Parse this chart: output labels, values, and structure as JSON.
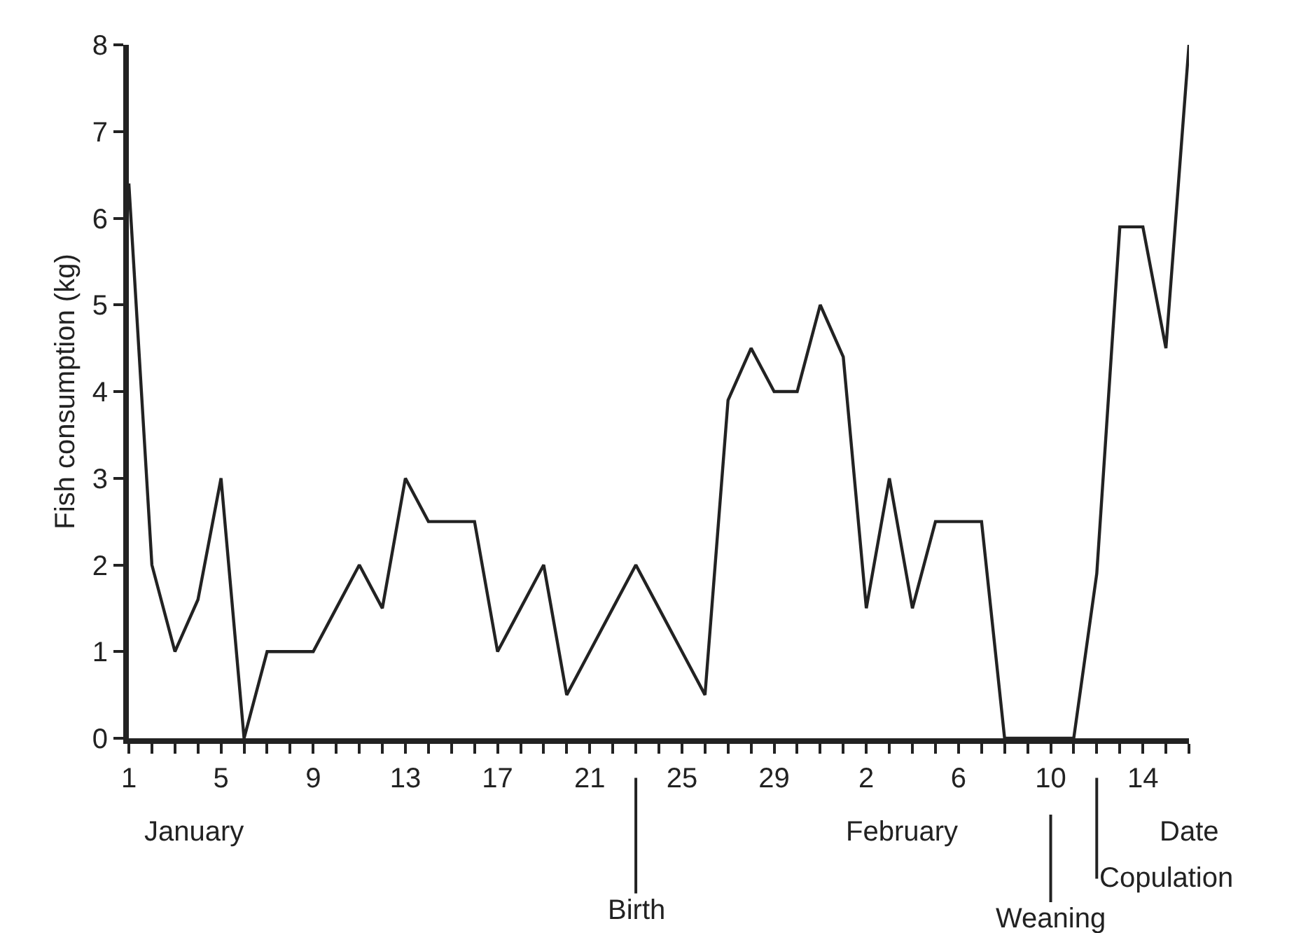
{
  "chart_data": {
    "type": "line",
    "xlabel": "Date",
    "ylabel": "Fish consumption (kg)",
    "x": [
      "--01-01",
      "--01-02",
      "--01-03",
      "--01-04",
      "--01-05",
      "--01-06",
      "--01-07",
      "--01-08",
      "--01-09",
      "--01-10",
      "--01-11",
      "--01-12",
      "--01-13",
      "--01-14",
      "--01-15",
      "--01-16",
      "--01-17",
      "--01-18",
      "--01-19",
      "--01-20",
      "--01-21",
      "--01-22",
      "--01-23",
      "--01-24",
      "--01-25",
      "--01-26",
      "--01-27",
      "--01-28",
      "--01-29",
      "--01-30",
      "--01-31",
      "--02-01",
      "--02-02",
      "--02-03",
      "--02-04",
      "--02-05",
      "--02-06",
      "--02-07",
      "--02-08",
      "--02-09",
      "--02-10",
      "--02-11",
      "--02-12",
      "--02-13",
      "--02-14",
      "--02-15",
      "--02-16"
    ],
    "series": [
      {
        "color": "#222222",
        "values": [
          6.4,
          2,
          1,
          1.6,
          3,
          0,
          1,
          1,
          1,
          1.5,
          2,
          1.5,
          3,
          2.5,
          2.5,
          2.5,
          1,
          1.5,
          2,
          0.5,
          1,
          1.5,
          2,
          1.5,
          1,
          0.5,
          3.9,
          4.5,
          4,
          4,
          5,
          4.4,
          1.5,
          3,
          1.5,
          2.5,
          2.5,
          2.5,
          0,
          0,
          0,
          0,
          1.9,
          5.9,
          5.9,
          4.5,
          8
        ]
      }
    ],
    "xlim": [
      "--01-01",
      "--02-16"
    ],
    "xticks": [
      {
        "value": "--01-01",
        "label": "1"
      },
      {
        "value": "--01-02",
        "label": null
      },
      {
        "value": "--01-03",
        "label": null
      },
      {
        "value": "--01-04",
        "label": null
      },
      {
        "value": "--01-05",
        "label": "5"
      },
      {
        "value": "--01-06",
        "label": null
      },
      {
        "value": "--01-07",
        "label": null
      },
      {
        "value": "--01-08",
        "label": null
      },
      {
        "value": "--01-09",
        "label": "9"
      },
      {
        "value": "--01-10",
        "label": null
      },
      {
        "value": "--01-11",
        "label": null
      },
      {
        "value": "--01-12",
        "label": null
      },
      {
        "value": "--01-13",
        "label": "13"
      },
      {
        "value": "--01-14",
        "label": null
      },
      {
        "value": "--01-15",
        "label": null
      },
      {
        "value": "--01-16",
        "label": null
      },
      {
        "value": "--01-17",
        "label": "17"
      },
      {
        "value": "--01-18",
        "label": null
      },
      {
        "value": "--01-19",
        "label": null
      },
      {
        "value": "--01-20",
        "label": null
      },
      {
        "value": "--01-21",
        "label": "21"
      },
      {
        "value": "--01-22",
        "label": null
      },
      {
        "value": "--01-23",
        "label": null
      },
      {
        "value": "--01-24",
        "label": null
      },
      {
        "value": "--01-25",
        "label": "25"
      },
      {
        "value": "--01-26",
        "label": null
      },
      {
        "value": "--01-27",
        "label": null
      },
      {
        "value": "--01-28",
        "label": null
      },
      {
        "value": "--01-29",
        "label": "29"
      },
      {
        "value": "--01-30",
        "label": null
      },
      {
        "value": "--01-31",
        "label": null
      },
      {
        "value": "--02-01",
        "label": null
      },
      {
        "value": "--02-02",
        "label": "2"
      },
      {
        "value": "--02-03",
        "label": null
      },
      {
        "value": "--02-04",
        "label": null
      },
      {
        "value": "--02-05",
        "label": null
      },
      {
        "value": "--02-06",
        "label": "6"
      },
      {
        "value": "--02-07",
        "label": null
      },
      {
        "value": "--02-08",
        "label": null
      },
      {
        "value": "--02-09",
        "label": null
      },
      {
        "value": "--02-10",
        "label": "10"
      },
      {
        "value": "--02-11",
        "label": null
      },
      {
        "value": "--02-12",
        "label": null
      },
      {
        "value": "--02-13",
        "label": null
      },
      {
        "value": "--02-14",
        "label": "14"
      },
      {
        "value": "--02-15",
        "label": null
      },
      {
        "value": "--02-16",
        "label": null
      }
    ],
    "ylim": [
      0,
      8
    ],
    "yticks": [
      0,
      1,
      2,
      3,
      4,
      5,
      6,
      7,
      8
    ],
    "marker": "none",
    "line_style": "solid",
    "annotations": [
      "January",
      "February",
      {
        "text": "Birth",
        "x": "--01-23"
      },
      {
        "text": "Weaning",
        "x": "--02-10"
      },
      "Copulation"
    ]
  }
}
